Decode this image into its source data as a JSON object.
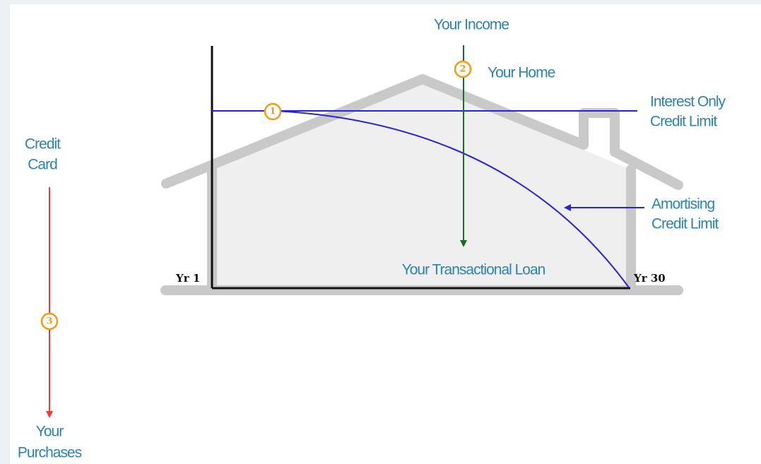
{
  "labels": {
    "income": "Your Income",
    "home": "Your Home",
    "interest_only": [
      "Interest Only",
      "Credit Limit"
    ],
    "amortising": [
      "Amortising",
      "Credit Limit"
    ],
    "credit_card": [
      "Credit",
      "Card"
    ],
    "transactional": "Your Transactional Loan",
    "purchases": [
      "Your",
      "Purchases"
    ],
    "year_start": "Yr 1",
    "year_end": "Yr 30"
  },
  "markers": [
    "1",
    "2",
    "3"
  ]
}
